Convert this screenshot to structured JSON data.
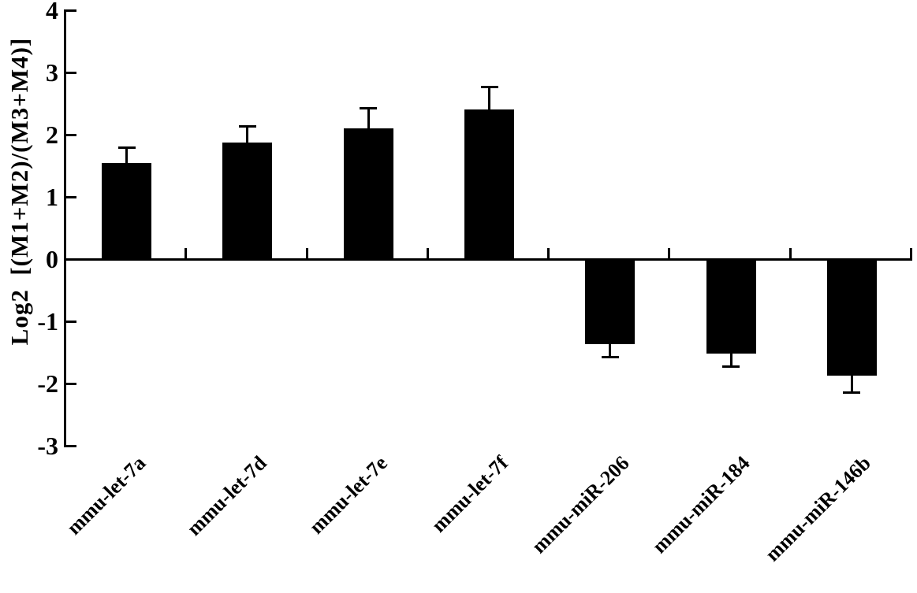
{
  "figure": {
    "background": "#ffffff",
    "bar_color": "#000000",
    "axis_color": "#000000",
    "text_color": "#000000"
  },
  "chart_data": {
    "type": "bar",
    "title": "",
    "xlabel": "",
    "ylabel": "Log2  [(M1+M2)/(M3+M4)]",
    "ylim": [
      -3,
      4
    ],
    "yticks": [
      4,
      3,
      2,
      1,
      0,
      -1,
      -2,
      -3
    ],
    "grid": false,
    "legend": null,
    "categories": [
      "mmu-let-7a",
      "mmu-let-7d",
      "mmu-let-7e",
      "mmu-let-7f",
      "mmu-miR-206",
      "mmu-miR-184",
      "mmu-miR-146b"
    ],
    "values": [
      1.55,
      1.87,
      2.1,
      2.4,
      -1.37,
      -1.52,
      -1.87
    ],
    "errors": [
      0.24,
      0.26,
      0.32,
      0.37,
      0.2,
      0.21,
      0.28
    ],
    "error_bar_direction": "outward",
    "x_tick_style": "boundary-ticks-above-baseline",
    "x_label_rotation_deg": -45
  }
}
